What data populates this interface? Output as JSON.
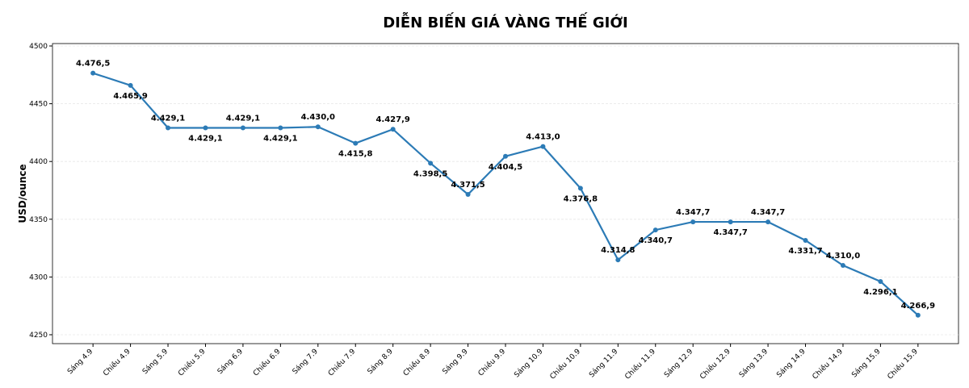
{
  "chart_data": {
    "type": "line",
    "title": "DIỄN BIẾN GIÁ VÀNG THẾ GIỚI",
    "y_label": "USD/ounce",
    "categories": [
      "Sáng 4.9",
      "Chiều 4.9",
      "Sáng 5.9",
      "Chiều 5.9",
      "Sáng 6.9",
      "Chiều 6.9",
      "Sáng 7.9",
      "Chiều 7.9",
      "Sáng 8.9",
      "Chiều 8.9",
      "Sáng 9.9",
      "Chiều 9.9",
      "Sáng 10.9",
      "Chiều 10.9",
      "Sáng 11.9",
      "Chiều 11.9",
      "Sáng 12.9",
      "Chiều 12.9",
      "Sáng 13.9",
      "Sáng 14.9",
      "Chiều 14.9",
      "Sáng 15.9",
      "Chiều 15.9"
    ],
    "values": [
      4476.5,
      4465.9,
      4429.1,
      4429.1,
      4429.1,
      4429.1,
      4430.0,
      4415.8,
      4427.9,
      4398.5,
      4371.5,
      4404.5,
      4413.0,
      4376.8,
      4314.8,
      4340.7,
      4347.7,
      4347.7,
      4347.7,
      4331.7,
      4310.0,
      4296.1,
      4266.9
    ],
    "value_labels": [
      "4.476,5",
      "4.465,9",
      "4.429,1",
      "4.429,1",
      "4.429,1",
      "4.429,1",
      "4.430,0",
      "4.415,8",
      "4.427,9",
      "4.398,5",
      "4.371,5",
      "4.404,5",
      "4.413,0",
      "4.376,8",
      "4.314,8",
      "4.340,7",
      "4.347,7",
      "4.347,7",
      "4.347,7",
      "4.331,7",
      "4.310,0",
      "4.296,1",
      "4.266,9"
    ],
    "color": "#2c7bb6",
    "ylim": [
      4242.3,
      4502.1
    ],
    "yticks": [
      4250,
      4300,
      4350,
      4400,
      4450,
      4500
    ],
    "grid": true
  }
}
